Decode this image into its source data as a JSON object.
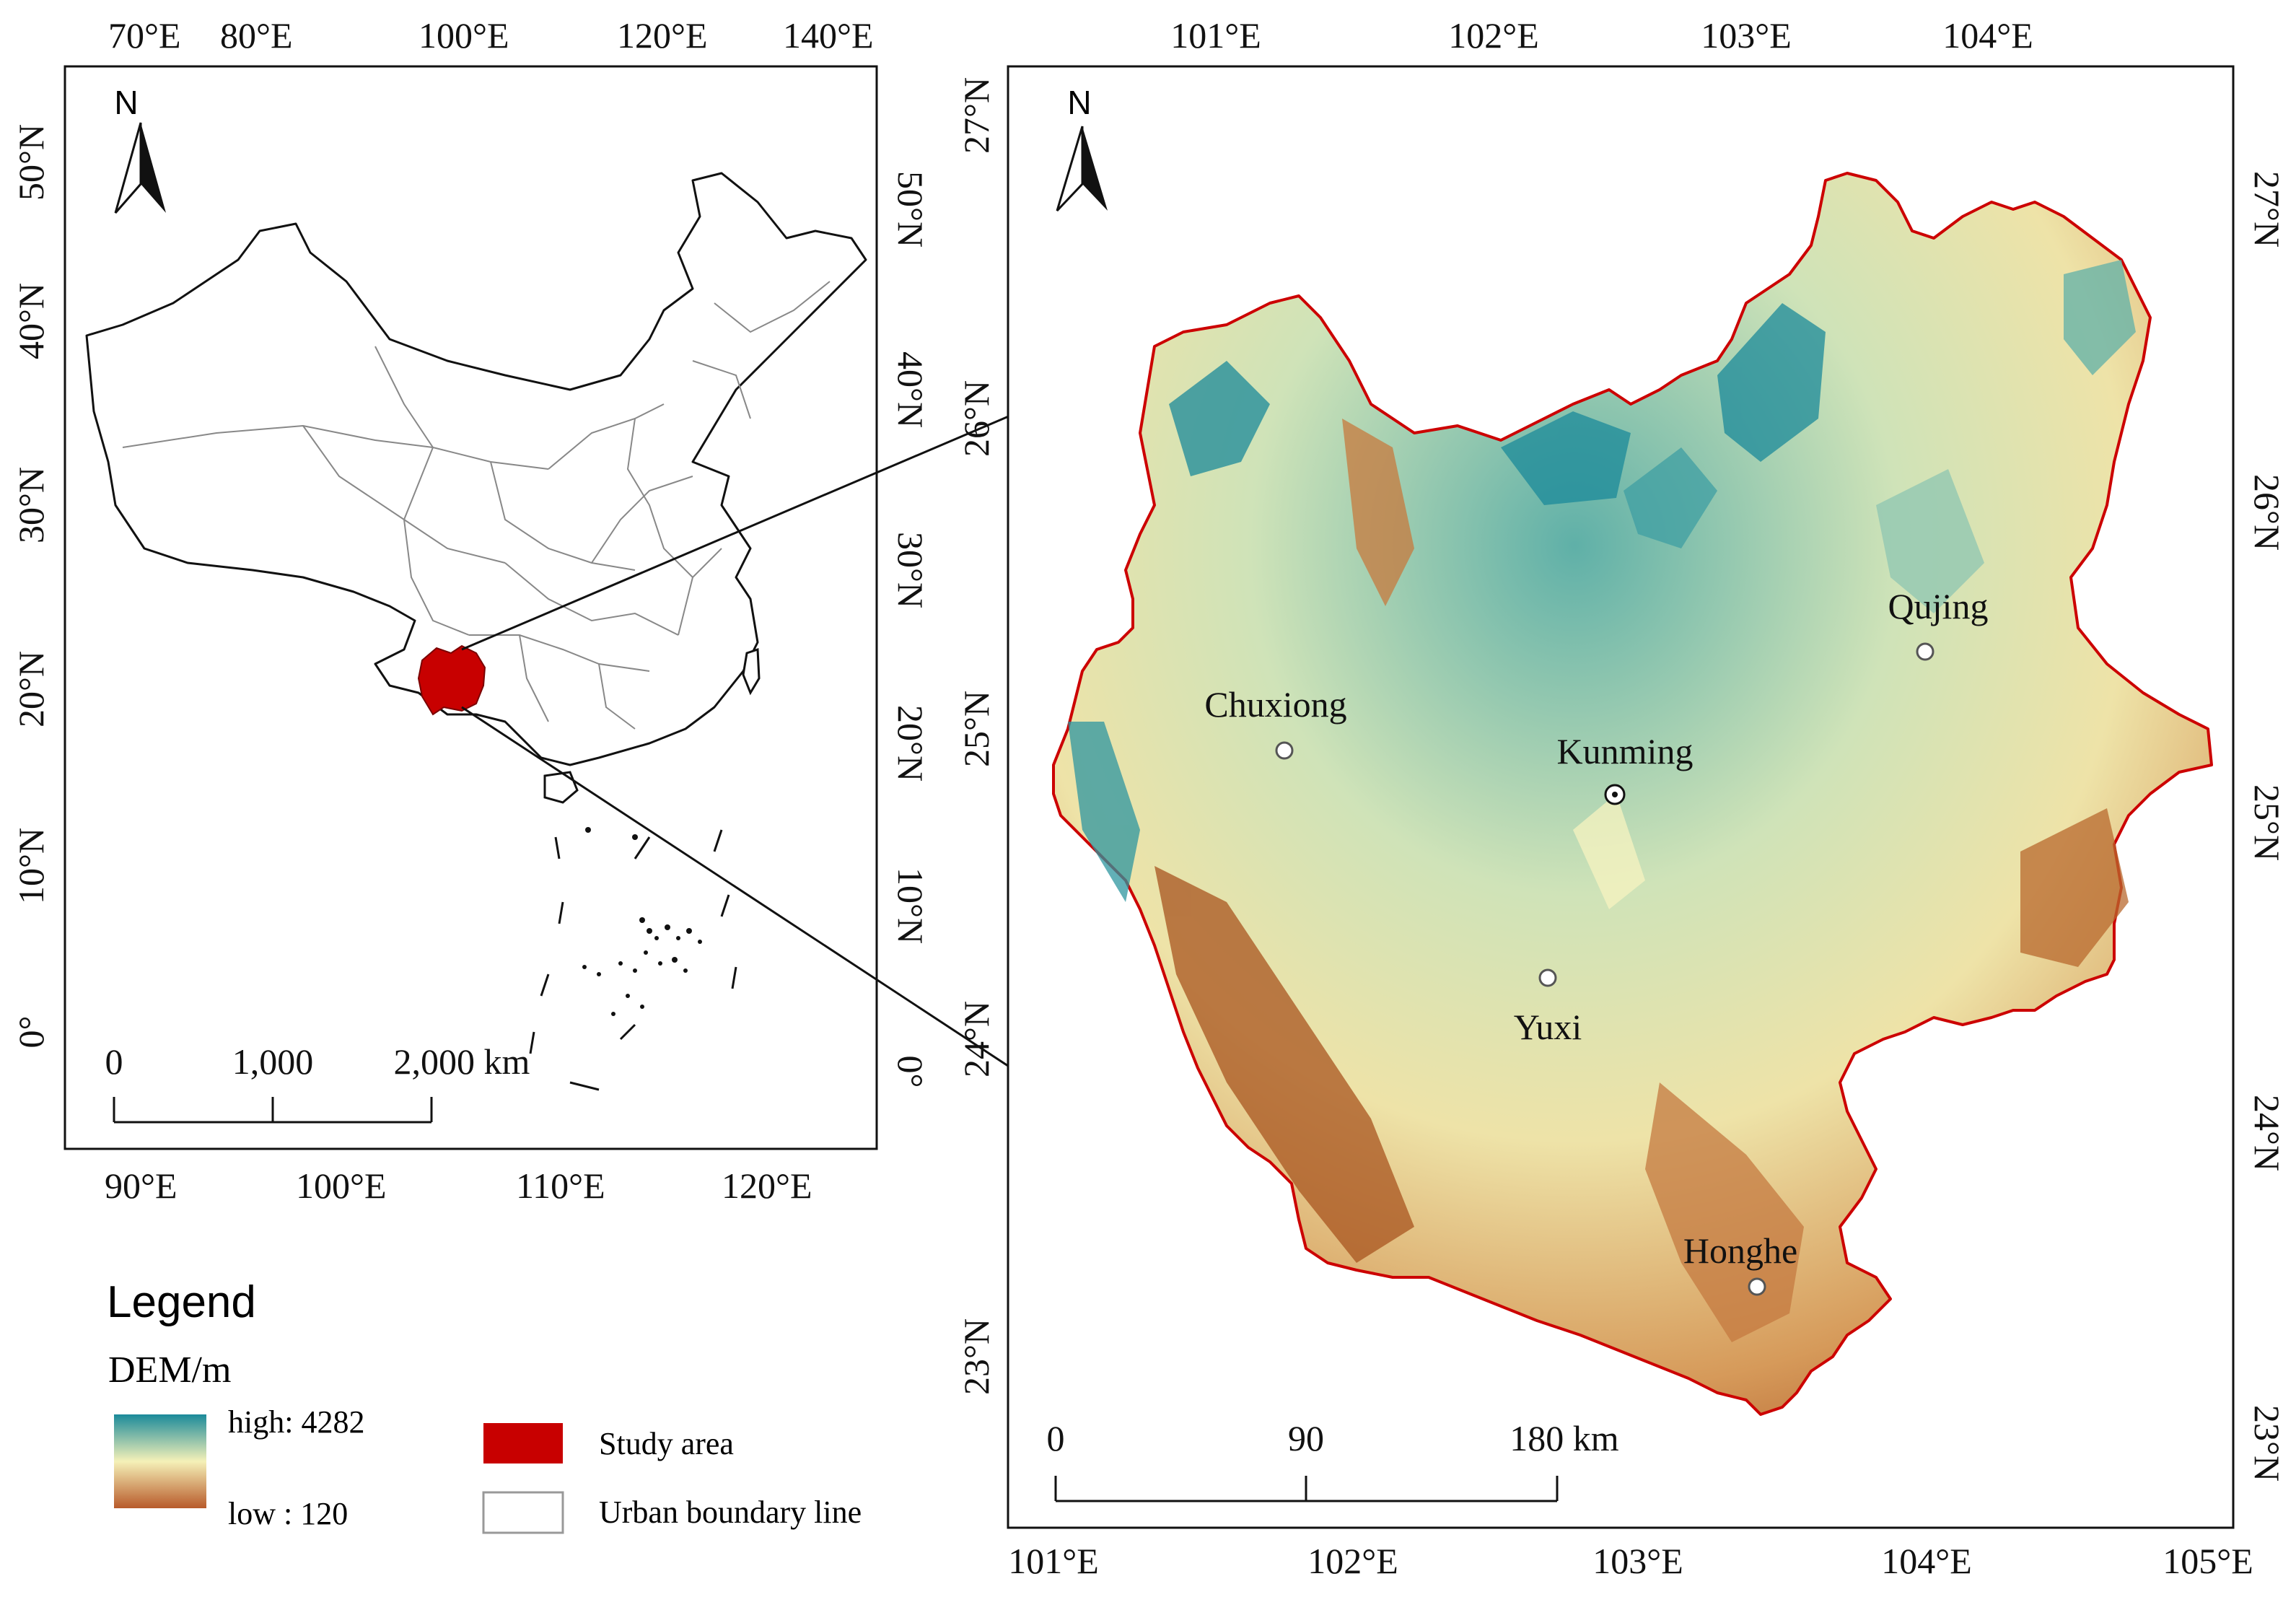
{
  "left_map": {
    "top_lon_labels": [
      "70°E",
      "80°E",
      "100°E",
      "120°E",
      "140°E"
    ],
    "bottom_lon_labels": [
      "90°E",
      "100°E",
      "110°E",
      "120°E"
    ],
    "left_lat_labels": [
      "50°N",
      "40°N",
      "30°N",
      "20°N",
      "10°N",
      "0°"
    ],
    "right_lat_labels": [
      "50°N",
      "40°N",
      "30°N",
      "20°N",
      "10°N",
      "0°"
    ],
    "north_label": "N",
    "scale_labels": [
      "0",
      "1,000",
      "2,000 km"
    ]
  },
  "right_map": {
    "top_lon_labels": [
      "101°E",
      "102°E",
      "103°E",
      "104°E"
    ],
    "bottom_lon_labels": [
      "101°E",
      "102°E",
      "103°E",
      "104°E",
      "105°E"
    ],
    "left_lat_labels": [
      "27°N",
      "26°N",
      "25°N",
      "24°N",
      "23°N"
    ],
    "right_lat_labels": [
      "27°N",
      "26°N",
      "25°N",
      "24°N",
      "23°N"
    ],
    "north_label": "N",
    "scale_labels": [
      "0",
      "90",
      "180 km"
    ],
    "cities": [
      {
        "name": "Chuxiong"
      },
      {
        "name": "Kunming"
      },
      {
        "name": "Qujing"
      },
      {
        "name": "Yuxi"
      },
      {
        "name": "Honghe"
      }
    ]
  },
  "legend": {
    "title": "Legend",
    "dem_title": "DEM/m",
    "high_label": "high: 4282",
    "low_label": "low : 120",
    "study_area_label": "Study area",
    "urban_label": "Urban boundary line",
    "colors": {
      "high": "#1b8a9a",
      "mid": "#f5f1b8",
      "low": "#b85a2a",
      "study_area": "#c80000"
    }
  }
}
